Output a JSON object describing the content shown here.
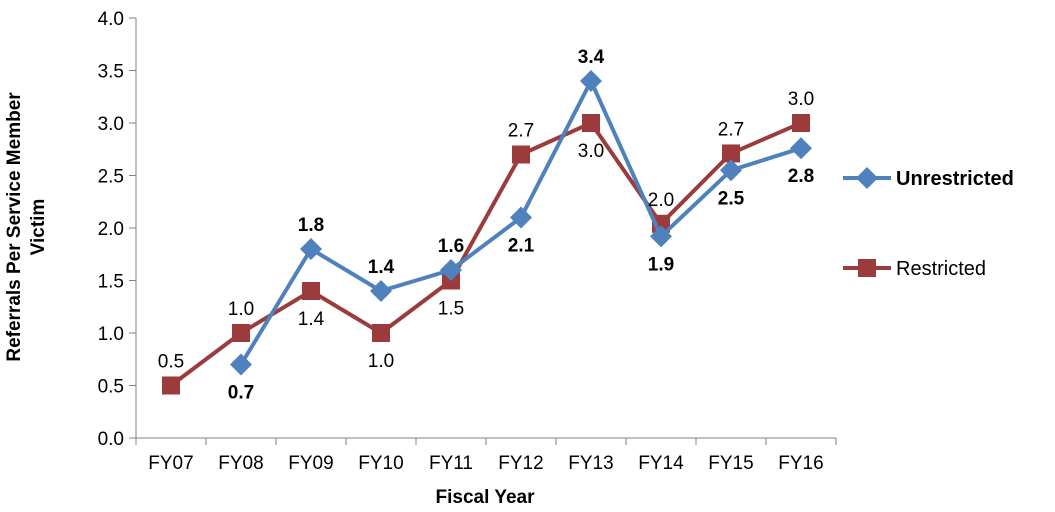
{
  "chart_data": {
    "type": "line",
    "categories": [
      "FY07",
      "FY08",
      "FY09",
      "FY10",
      "FY11",
      "FY12",
      "FY13",
      "FY14",
      "FY15",
      "FY16"
    ],
    "series": [
      {
        "name": "Unrestricted",
        "color": "#4F81BD",
        "marker": "diamond",
        "label_bold": true,
        "values": [
          null,
          0.7,
          1.8,
          1.4,
          1.6,
          2.1,
          3.4,
          1.92,
          2.55,
          2.76
        ],
        "labels": [
          null,
          "0.7",
          "1.8",
          "1.4",
          "1.6",
          "2.1",
          "3.4",
          "1.9",
          "2.5",
          "2.8"
        ],
        "label_positions": [
          null,
          "below",
          "above",
          "above",
          "above",
          "below",
          "above",
          "below",
          "below",
          "below"
        ]
      },
      {
        "name": "Restricted",
        "color": "#9B3B3B",
        "marker": "square",
        "label_bold": false,
        "values": [
          0.5,
          1.0,
          1.4,
          1.0,
          1.5,
          2.7,
          3.0,
          2.04,
          2.71,
          3.0
        ],
        "labels": [
          "0.5",
          "1.0",
          "1.4",
          "1.0",
          "1.5",
          "2.7",
          "3.0",
          "2.0",
          "2.7",
          "3.0"
        ],
        "label_positions": [
          "above",
          "above",
          "below",
          "below",
          "below",
          "above",
          "below",
          "above",
          "above",
          "above"
        ]
      }
    ],
    "xlabel": "Fiscal Year",
    "ylabel": "Referrals Per Service Member Victim",
    "ylim": [
      0,
      4.0
    ],
    "yticks": [
      "0.0",
      "0.5",
      "1.0",
      "1.5",
      "2.0",
      "2.5",
      "3.0",
      "3.5",
      "4.0"
    ],
    "grid": false,
    "legend": "right"
  }
}
